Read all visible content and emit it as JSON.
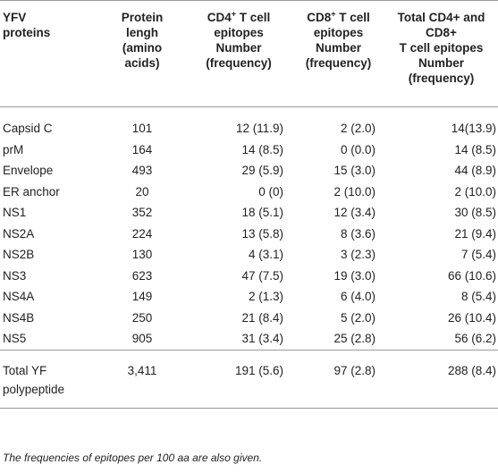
{
  "table": {
    "headers": {
      "col1_line1": "YFV",
      "col1_line2": "proteins",
      "col2_line1": "Protein",
      "col2_line2": "lengh",
      "col2_line3": "(amino",
      "col2_line4": "acids)",
      "col3_a": "CD4",
      "col3_sup": "+",
      "col3_b": " T cell",
      "col3_line2": "epitopes",
      "col3_line3": "Number",
      "col3_line4": "(frequency)",
      "col4_a": "CD8",
      "col4_sup": "+",
      "col4_b": " T cell",
      "col4_line2": "epitopes",
      "col4_line3": "Number",
      "col4_line4": "(frequency)",
      "col5_line1": "Total CD4+ and",
      "col5_line2": "CD8+",
      "col5_line3": "T cell epitopes",
      "col5_line4": "Number",
      "col5_line5": "(frequency)"
    },
    "rows": [
      {
        "protein": "Capsid C",
        "length": "101",
        "cd4": "12 (11.9)",
        "cd8": "2 (2.0)",
        "total": "14(13.9)"
      },
      {
        "protein": "prM",
        "length": "164",
        "cd4": "14 (8.5)",
        "cd8": "0 (0.0)",
        "total": "14 (8.5)"
      },
      {
        "protein": "Envelope",
        "length": "493",
        "cd4": "29 (5.9)",
        "cd8": "15 (3.0)",
        "total": "44 (8.9)"
      },
      {
        "protein": "ER anchor",
        "length": "20",
        "cd4": "0 (0)",
        "cd8": "2 (10.0)",
        "total": "2 (10.0)"
      },
      {
        "protein": "NS1",
        "length": "352",
        "cd4": "18 (5.1)",
        "cd8": "12 (3.4)",
        "total": "30 (8.5)"
      },
      {
        "protein": "NS2A",
        "length": "224",
        "cd4": "13 (5.8)",
        "cd8": "8 (3.6)",
        "total": "21 (9.4)"
      },
      {
        "protein": "NS2B",
        "length": "130",
        "cd4": "4 (3.1)",
        "cd8": "3 (2.3)",
        "total": "7 (5.4)"
      },
      {
        "protein": "NS3",
        "length": "623",
        "cd4": "47 (7.5)",
        "cd8": "19 (3.0)",
        "total": "66 (10.6)"
      },
      {
        "protein": "NS4A",
        "length": "149",
        "cd4": "2 (1.3)",
        "cd8": "6 (4.0)",
        "total": "8 (5.4)"
      },
      {
        "protein": "NS4B",
        "length": "250",
        "cd4": "21 (8.4)",
        "cd8": "5 (2.0)",
        "total": "26 (10.4)"
      },
      {
        "protein": "NS5",
        "length": "905",
        "cd4": "31 (3.4)",
        "cd8": "25 (2.8)",
        "total": "56 (6.2)"
      }
    ],
    "total": {
      "protein_line1": "Total YF",
      "protein_line2": "polypeptide",
      "length": "3,411",
      "cd4": "191 (5.6)",
      "cd8": "97 (2.8)",
      "total": "288 (8.4)"
    }
  },
  "footnote": "The frequencies of epitopes per 100 aa are also given.",
  "colors": {
    "text": "#222222",
    "rule": "#9a9a9a",
    "background": "#ffffff"
  }
}
